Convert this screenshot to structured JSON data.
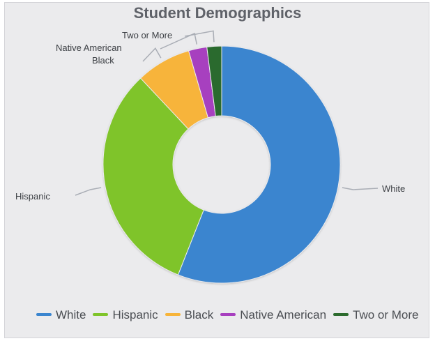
{
  "chart_data": {
    "type": "pie",
    "variant": "donut",
    "title": "Student Demographics",
    "categories": [
      "White",
      "Hispanic",
      "Black",
      "Native American",
      "Two or More"
    ],
    "values": [
      56,
      32,
      7.5,
      2.5,
      2
    ],
    "colors": [
      "#3b85cf",
      "#7fc42a",
      "#f7b43a",
      "#a73fbf",
      "#2c6b2e"
    ],
    "legend_position": "bottom",
    "legend": [
      "White",
      "Hispanic",
      "Black",
      "Native American",
      "Two or More"
    ]
  }
}
